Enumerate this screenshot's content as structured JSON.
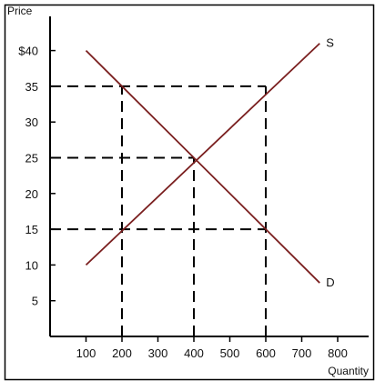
{
  "chart_data": {
    "type": "line",
    "title": "",
    "ylabel": "Price",
    "xlabel": "Quantity",
    "xlim": [
      0,
      900
    ],
    "ylim": [
      0,
      45
    ],
    "y_ticks": [
      {
        "value": 5,
        "label": "5"
      },
      {
        "value": 10,
        "label": "10"
      },
      {
        "value": 15,
        "label": "15"
      },
      {
        "value": 20,
        "label": "20"
      },
      {
        "value": 25,
        "label": "25"
      },
      {
        "value": 30,
        "label": "30"
      },
      {
        "value": 35,
        "label": "35"
      },
      {
        "value": 40,
        "label": "$40"
      }
    ],
    "x_ticks": [
      {
        "value": 100,
        "label": "100"
      },
      {
        "value": 200,
        "label": "200"
      },
      {
        "value": 300,
        "label": "300"
      },
      {
        "value": 400,
        "label": "400"
      },
      {
        "value": 500,
        "label": "500"
      },
      {
        "value": 600,
        "label": "600"
      },
      {
        "value": 700,
        "label": "700"
      },
      {
        "value": 800,
        "label": "800"
      }
    ],
    "series": [
      {
        "name": "S",
        "color": "#7a1f1f",
        "x": [
          100,
          750
        ],
        "y": [
          10,
          41
        ]
      },
      {
        "name": "D",
        "color": "#7a1f1f",
        "x": [
          100,
          750
        ],
        "y": [
          40,
          7.5
        ]
      }
    ],
    "reference_lines": [
      {
        "kind": "horizontal",
        "y": 35,
        "x_from": 0,
        "x_to": 600
      },
      {
        "kind": "horizontal",
        "y": 25,
        "x_from": 0,
        "x_to": 400
      },
      {
        "kind": "horizontal",
        "y": 15,
        "x_from": 0,
        "x_to": 600
      },
      {
        "kind": "vertical",
        "x": 200,
        "y_from": 0,
        "y_to": 35
      },
      {
        "kind": "vertical",
        "x": 400,
        "y_from": 0,
        "y_to": 25
      },
      {
        "kind": "vertical",
        "x": 600,
        "y_from": 0,
        "y_to": 35
      }
    ],
    "grid": false,
    "legend": "none"
  }
}
